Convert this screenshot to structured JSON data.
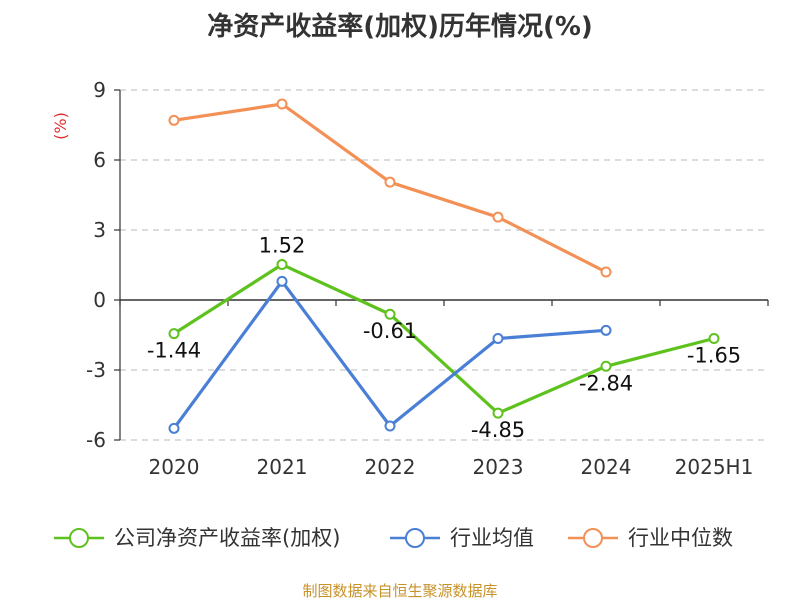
{
  "title": "净资产收益率(加权)历年情况(%)",
  "source_note": "制图数据来自恒生聚源数据库",
  "chart_data": {
    "type": "line",
    "title": "净资产收益率(加权)历年情况(%)",
    "ylabel": "(%)",
    "xlabel": "",
    "categories": [
      "2020",
      "2021",
      "2022",
      "2023",
      "2024",
      "2025H1"
    ],
    "ylim": [
      -6,
      9
    ],
    "yticks": [
      9,
      6,
      3,
      0,
      -3,
      -6
    ],
    "grid": true,
    "legend_position": "bottom",
    "series": [
      {
        "name": "公司净资产收益率(加权)",
        "color": "#5ec21e",
        "values": [
          -1.44,
          1.52,
          -0.61,
          -4.85,
          -2.84,
          -1.65
        ],
        "labels": [
          "-1.44",
          "1.52",
          "-0.61",
          "-4.85",
          "-2.84",
          "-1.65"
        ]
      },
      {
        "name": "行业均值",
        "color": "#4a7fd6",
        "values": [
          -5.5,
          0.8,
          -5.4,
          -1.65,
          -1.3,
          null
        ]
      },
      {
        "name": "行业中位数",
        "color": "#f39056",
        "values": [
          7.7,
          8.4,
          5.05,
          3.55,
          1.2,
          null
        ]
      }
    ]
  }
}
